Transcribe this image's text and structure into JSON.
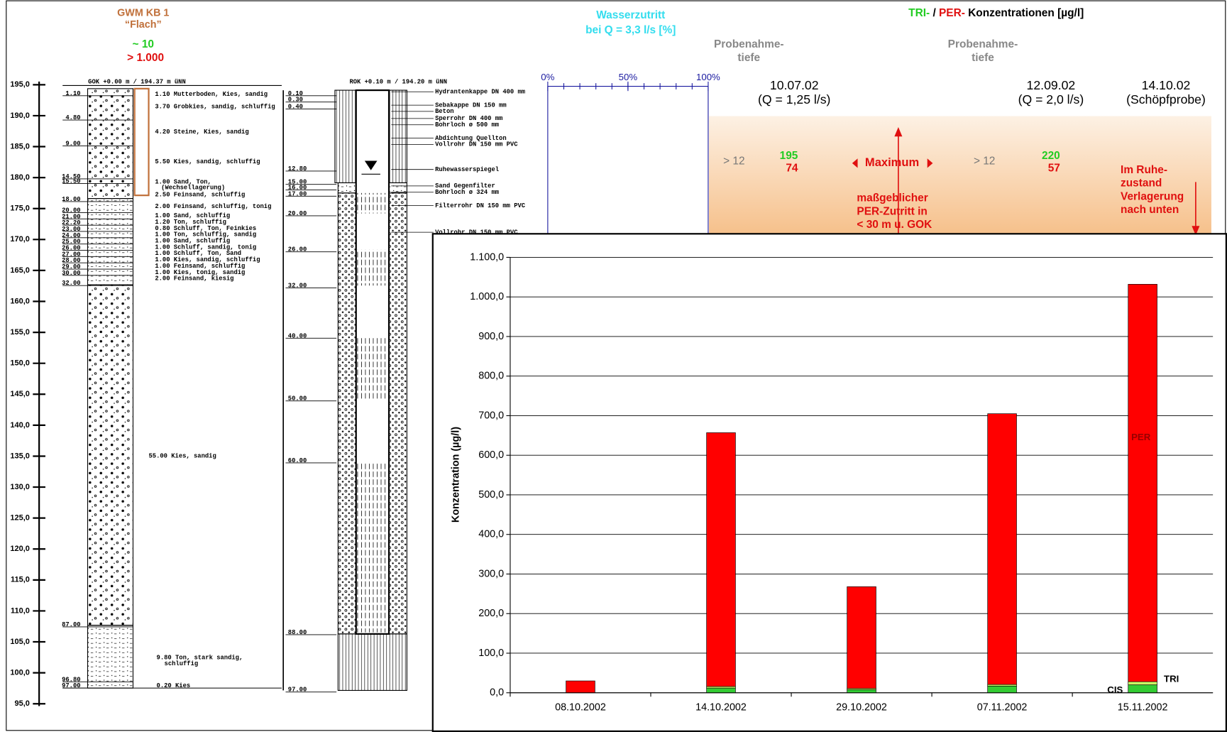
{
  "header": {
    "well_title": "GWM KB 1",
    "well_subtitle": "“Flach”",
    "well_tri": "~ 10",
    "well_per": "> 1.000",
    "inflow_title": "Wasserzutritt",
    "inflow_subtitle": "bei Q = 3,3 l/s [%]",
    "inflow_ticks": [
      {
        "value": 0,
        "label": "0%"
      },
      {
        "value": 50,
        "label": "50%"
      },
      {
        "value": 100,
        "label": "100%"
      }
    ],
    "conc_title": [
      "TRI-",
      " / ",
      "PER-",
      " Konzentrationen [µg/l]"
    ],
    "sampling_depth_1": [
      "Probenahme-",
      "tiefe"
    ],
    "sampling_depth_2": [
      "Probenahme-",
      "tiefe"
    ]
  },
  "samples": [
    {
      "date": "10.07.02",
      "q": "(Q = 1,25 l/s)"
    },
    {
      "date": "12.09.02",
      "q": "(Q = 2,0 l/s)"
    },
    {
      "date": "14.10.02",
      "q": "(Schöpfprobe)"
    }
  ],
  "results": [
    {
      "depth": "> 12",
      "tri": 195,
      "per": 74
    },
    {
      "depth": "> 12",
      "tri": 220,
      "per": 57
    }
  ],
  "notes": {
    "maximum": "Maximum",
    "per_inflow": [
      "maßgeblicher",
      "PER-Zutritt in",
      "< 30 m u. GOK"
    ],
    "rest": [
      "Im Ruhe-",
      "zustand",
      "Verlagerung",
      "nach unten"
    ]
  },
  "elevation_axis": {
    "ticks": [
      {
        "value": 195,
        "label": "195,0"
      },
      {
        "value": 190,
        "label": "190,0"
      },
      {
        "value": 185,
        "label": "185,0"
      },
      {
        "value": 180,
        "label": "180,0"
      },
      {
        "value": 175,
        "label": "175,0"
      },
      {
        "value": 170,
        "label": "170,0"
      },
      {
        "value": 165,
        "label": "165,0"
      },
      {
        "value": 160,
        "label": "160,0"
      },
      {
        "value": 155,
        "label": "155,0"
      },
      {
        "value": 150,
        "label": "150,0"
      },
      {
        "value": 145,
        "label": "145,0"
      },
      {
        "value": 140,
        "label": "140,0"
      },
      {
        "value": 135,
        "label": "135,0"
      },
      {
        "value": 130,
        "label": "130,0"
      },
      {
        "value": 125,
        "label": "125,0"
      },
      {
        "value": 120,
        "label": "120,0"
      },
      {
        "value": 115,
        "label": "115,0"
      },
      {
        "value": 110,
        "label": "110,0"
      },
      {
        "value": 105,
        "label": "105,0"
      },
      {
        "value": 100,
        "label": "100,0"
      },
      {
        "value": 95,
        "label": "95,0"
      }
    ]
  },
  "log": {
    "reference": "GOK +0.00 m / 194.37 m üNN",
    "depths": [
      "1.10",
      "4.80",
      "9.00",
      "14.50",
      "15.50",
      "18.00",
      "20.00",
      "21.00",
      "22.20",
      "23.00",
      "24.00",
      "25.00",
      "26.00",
      "27.00",
      "28.00",
      "29.00",
      "30.00",
      "32.00",
      "87.00",
      "96.80",
      "97.00"
    ],
    "layers": [
      "1.10 Mutterboden, Kies, sandig",
      "3.70 Grobkies, sandig, schluffig",
      "4.20 Steine, Kies, sandig",
      "5.50 Kies, sandig, schluffig",
      "1.00 Sand, Ton,",
      "(Wechsellagerung)",
      "2.50 Feinsand, schluffig",
      "2.00 Feinsand, schluffig, tonig",
      "1.00 Sand, schluffig",
      "1.20 Ton, schluffig",
      "0.80 Schluff, Ton, Feinkies",
      "1.00 Ton, schluffig, sandig",
      "1.00 Sand, schluffig",
      "1.00 Schluff, sandig, tonig",
      "1.00 Schluff, Ton, Sand",
      "1.00 Kies, sandig, schluffig",
      "1.00 Feinsand, schluffig",
      "1.00 Kies, tonig, sandig",
      "2.00 Feinsand, kiesig",
      "55.00 Kies, sandig",
      "9.80 Ton, stark sandig,",
      "schluffig",
      "0.20 Kies"
    ]
  },
  "well": {
    "reference": "ROK +0.10 m / 194.20 m üNN",
    "depths": [
      "0.10",
      "0.30",
      "0.40",
      "12.80",
      "15.00",
      "16.00",
      "17.00",
      "20.00",
      "26.00",
      "32.00",
      "40.00",
      "50.00",
      "60.00",
      "88.00",
      "97.00"
    ],
    "parts": [
      "Hydrantenkappe DN 400 mm",
      "Sebakappe DN 150 mm",
      "Beton",
      "Sperrohr DN 400 mm",
      "Bohrloch ø 500 mm",
      "Abdichtung Quellton",
      "Vollrohr DN 150 mm PVC",
      "Ruhewasserspiegel",
      "Sand Gegenfilter",
      "Bohrloch ø 324 mm",
      "Filterrohr DN 150 mm PVC",
      "Vollrohr DN 150 mm PVC"
    ]
  },
  "chart_data": {
    "type": "bar",
    "stacked": true,
    "y_label": "Konzentration (µg/l)",
    "categories": [
      "08.10.2002",
      "14.10.2002",
      "29.10.2002",
      "07.11.2002",
      "15.11.2002"
    ],
    "series": [
      {
        "name": "CIS",
        "color": "#33cc33",
        "values": [
          0,
          12,
          8,
          17,
          20
        ]
      },
      {
        "name": "TRI",
        "color": "#ccff66",
        "values": [
          0,
          4,
          3,
          4,
          8
        ]
      },
      {
        "name": "PER",
        "color": "#ff0000",
        "values": [
          30,
          641,
          257,
          684,
          1004
        ]
      }
    ],
    "ylim": [
      0,
      1100
    ],
    "yticks": [
      {
        "value": 0,
        "label": "0,0"
      },
      {
        "value": 100,
        "label": "100,0"
      },
      {
        "value": 200,
        "label": "200,0"
      },
      {
        "value": 300,
        "label": "300,0"
      },
      {
        "value": 400,
        "label": "400,0"
      },
      {
        "value": 500,
        "label": "500,0"
      },
      {
        "value": 600,
        "label": "600,0"
      },
      {
        "value": 700,
        "label": "700,0"
      },
      {
        "value": 800,
        "label": "800,0"
      },
      {
        "value": 900,
        "label": "900,0"
      },
      {
        "value": 1000,
        "label": "1.000,0"
      },
      {
        "value": 1100,
        "label": "1.100,0"
      }
    ],
    "grid": true
  }
}
